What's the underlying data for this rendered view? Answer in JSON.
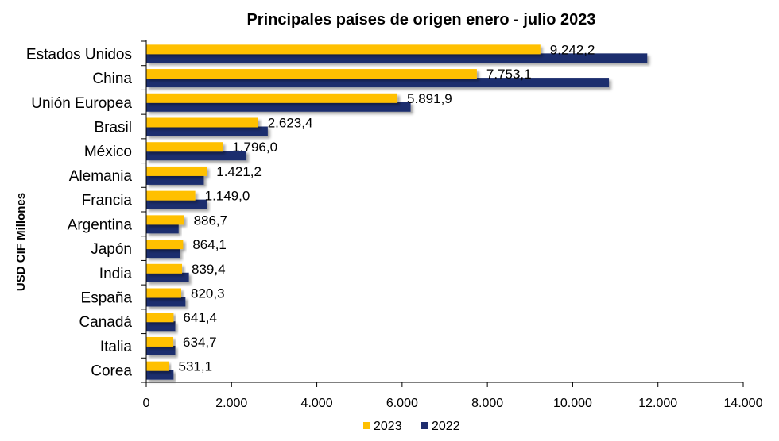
{
  "chart_data": {
    "type": "bar",
    "orientation": "horizontal",
    "title": "Principales países de origen enero - julio 2023",
    "ylabel": "USD CIF Millones",
    "xlabel": "",
    "xlim": [
      0,
      14000
    ],
    "x_ticks": [
      "0",
      "2.000",
      "4.000",
      "6.000",
      "8.000",
      "10.000",
      "12.000",
      "14.000"
    ],
    "x_tick_values": [
      0,
      2000,
      4000,
      6000,
      8000,
      10000,
      12000,
      14000
    ],
    "grid": false,
    "legend_position": "bottom",
    "categories": [
      "Estados Unidos",
      "China",
      "Unión Europea",
      "Brasil",
      "México",
      "Alemania",
      "Francia",
      "Argentina",
      "Japón",
      "India",
      "España",
      "Canadá",
      "Italia",
      "Corea"
    ],
    "series": [
      {
        "name": "2023",
        "color": "#FFC000",
        "values": [
          9242.2,
          7753.1,
          5891.9,
          2623.4,
          1796.0,
          1421.2,
          1149.0,
          886.7,
          864.1,
          839.4,
          820.3,
          641.4,
          634.7,
          531.1
        ],
        "labels": [
          "9.242,2",
          "7.753,1",
          "5.891,9",
          "2.623,4",
          "1.796,0",
          "1.421,2",
          "1.149,0",
          "886,7",
          "864,1",
          "839,4",
          "820,3",
          "641,4",
          "634,7",
          "531,1"
        ]
      },
      {
        "name": "2022",
        "color": "#1F2D6E",
        "values": [
          11750,
          10850,
          6200,
          2850,
          2350,
          1350,
          1420,
          760,
          790,
          1000,
          920,
          680,
          680,
          640
        ]
      }
    ]
  }
}
